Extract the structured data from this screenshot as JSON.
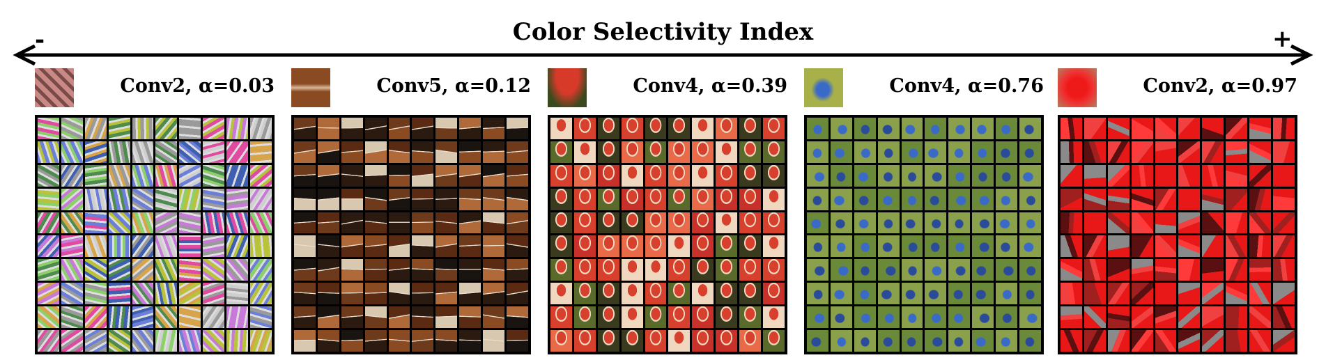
{
  "title": "Color Selectivity Index",
  "axis": {
    "left_label": "-",
    "right_label": "+"
  },
  "panels": [
    {
      "layer": "Conv2",
      "alpha": "0.03",
      "caption": "Conv2, α=0.03",
      "grid_rows": 10,
      "grid_cols": 10,
      "swatch_colors": [
        "#c98a86",
        "#7a4a48"
      ],
      "tile_colors": [
        "#6b7fd9",
        "#b8c23a",
        "#4f8a4f",
        "#9a9a9a",
        "#c87ad8",
        "#d8a44a",
        "#3f5fb0",
        "#cfcfcf",
        "#e04aa0",
        "#8bd06a"
      ],
      "tile_pattern": "stripes"
    },
    {
      "layer": "Conv5",
      "alpha": "0.12",
      "caption": "Conv5, α=0.12",
      "grid_rows": 10,
      "grid_cols": 10,
      "swatch_colors": [
        "#8a4a22",
        "#d9b89a"
      ],
      "tile_colors": [
        "#5a2a12",
        "#8a4a22",
        "#2a1a10",
        "#b06a3a",
        "#1a1410",
        "#d8c8b0",
        "#6e3a1c"
      ],
      "tile_pattern": "planks"
    },
    {
      "layer": "Conv4",
      "alpha": "0.39",
      "caption": "Conv4, α=0.39",
      "grid_rows": 10,
      "grid_cols": 10,
      "swatch_colors": [
        "#d83a2a",
        "#3a4a1e"
      ],
      "tile_colors": [
        "#d8402e",
        "#e86a48",
        "#5a6a2a",
        "#3a3a1e",
        "#f0d8c0",
        "#c8302a"
      ],
      "tile_pattern": "mushroom"
    },
    {
      "layer": "Conv4",
      "alpha": "0.76",
      "caption": "Conv4, α=0.76",
      "grid_rows": 10,
      "grid_cols": 10,
      "swatch_colors": [
        "#3a6ac8",
        "#a8b04a"
      ],
      "tile_colors": [
        "#2a4a9a",
        "#3a6ac8",
        "#6a8a3a",
        "#8aa04a",
        "#1a2a3a",
        "#4a5a6a"
      ],
      "tile_pattern": "bird"
    },
    {
      "layer": "Conv2",
      "alpha": "0.97",
      "caption": "Conv2, α=0.97",
      "grid_rows": 10,
      "grid_cols": 10,
      "swatch_colors": [
        "#ee1a1a",
        "#b08060"
      ],
      "tile_colors": [
        "#e81818",
        "#f04040",
        "#a02020",
        "#5a1010",
        "#8a8a8a",
        "#ff3a3a"
      ],
      "tile_pattern": "red"
    }
  ]
}
